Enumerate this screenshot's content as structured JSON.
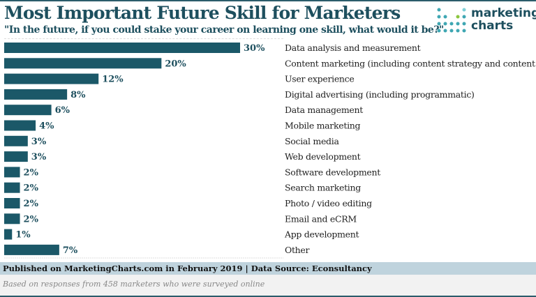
{
  "header": {
    "title": "Most Important Future Skill for Marketers",
    "subtitle": "\"In the future, if you could stake your career on learning one skill, what would it be?\"",
    "logo_text": "marketing charts"
  },
  "chart_data": {
    "type": "bar",
    "orientation": "horizontal",
    "title": "Most Important Future Skill for Marketers",
    "categories": [
      "Data analysis and measurement",
      "Content marketing (including content strategy and content",
      "User experience",
      "Digital advertising (including programmatic)",
      "Data management",
      "Mobile marketing",
      "Social media",
      "Web development",
      "Software development",
      "Search marketing",
      "Photo / video editing",
      "Email and eCRM",
      "App development",
      "Other"
    ],
    "values": [
      30,
      20,
      12,
      8,
      6,
      4,
      3,
      3,
      2,
      2,
      2,
      2,
      1,
      7
    ],
    "data_labels": [
      "30%",
      "20%",
      "12%",
      "8%",
      "6%",
      "4%",
      "3%",
      "3%",
      "2%",
      "2%",
      "2%",
      "2%",
      "1%",
      "7%"
    ],
    "unit": "%",
    "xlim": [
      0,
      30
    ],
    "grid": false,
    "bar_color": "#1b5868",
    "label_color": "#1d4f5e"
  },
  "footer": {
    "published": "Published on MarketingCharts.com in February 2019 | Data Source: Econsultancy",
    "note": "Based on responses from 458 marketers who were surveyed online"
  }
}
